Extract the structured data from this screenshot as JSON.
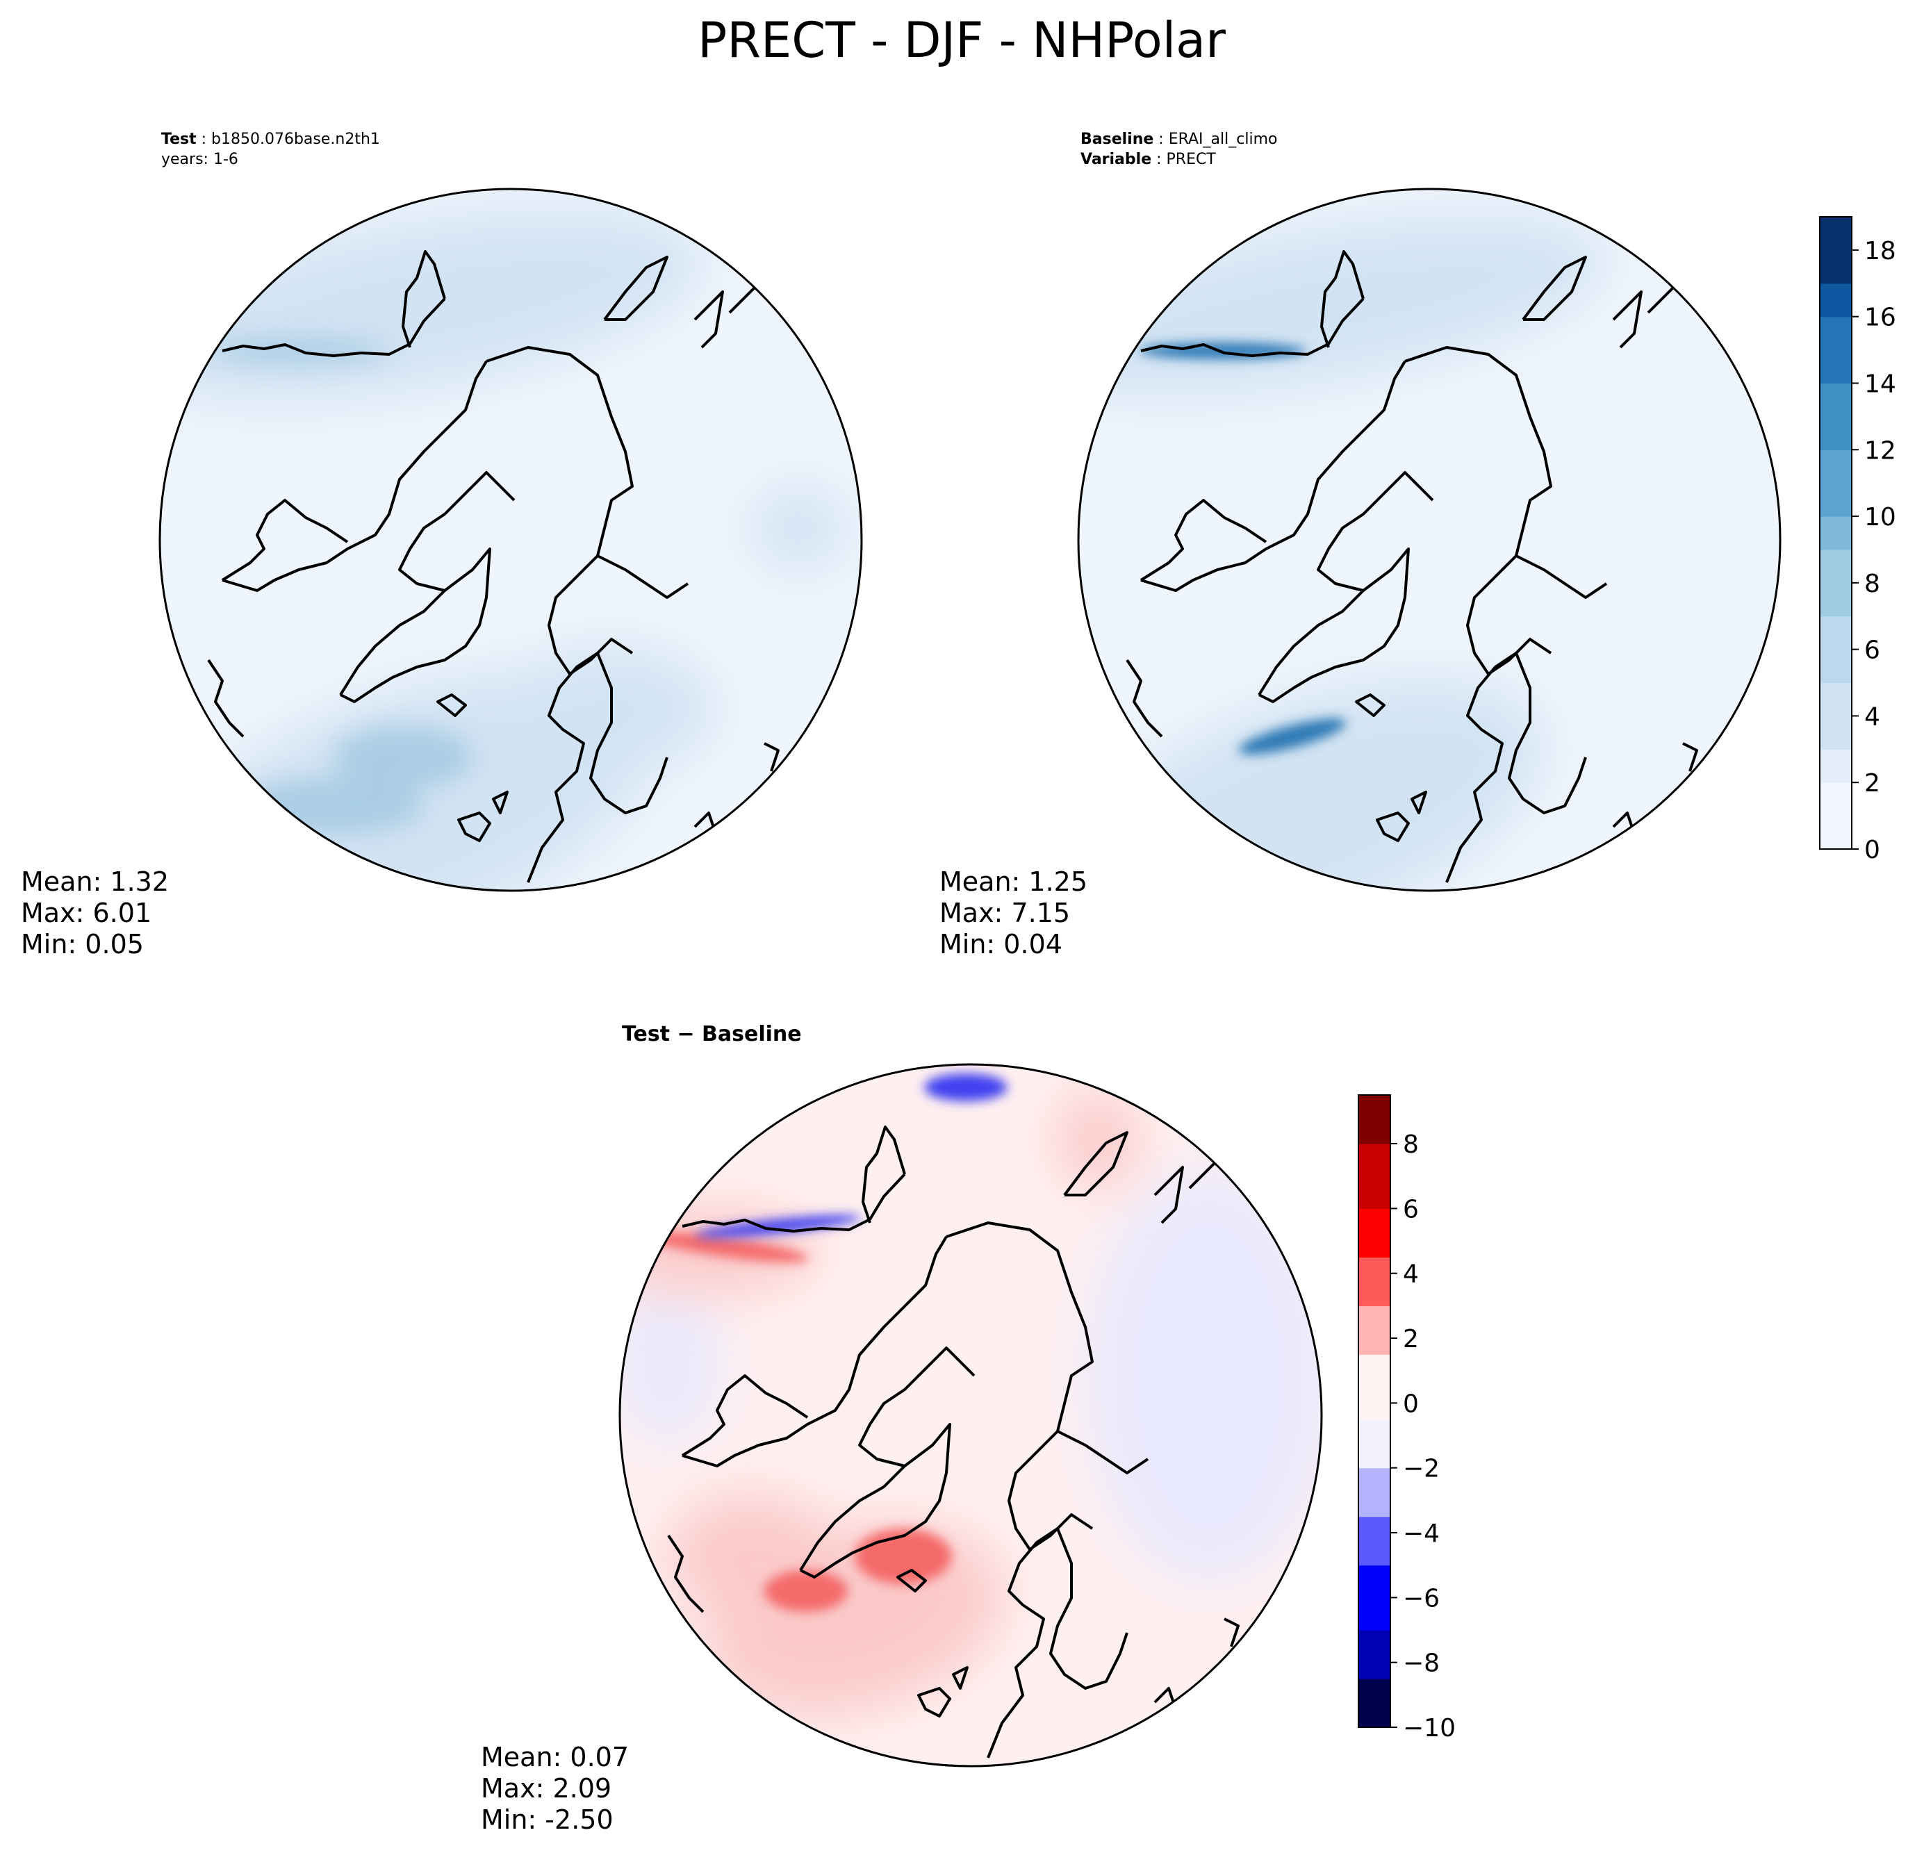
{
  "chart_data": {
    "title": "PRECT - DJF - NHPolar",
    "panels": [
      {
        "id": "test",
        "type": "heatmap",
        "projection": "north-polar-stereographic",
        "header": [
          {
            "label": "Test",
            "value": "b1850.076base.n2th1"
          },
          {
            "label": "",
            "value": "years: 1-6"
          }
        ],
        "stats": {
          "mean": "Mean:  1.32",
          "max": "Max:  6.01",
          "min": "Min:  0.05"
        },
        "colorbar": "precip"
      },
      {
        "id": "baseline",
        "type": "heatmap",
        "projection": "north-polar-stereographic",
        "header": [
          {
            "label": "Baseline",
            "value": "ERAI_all_climo"
          },
          {
            "label": "Variable",
            "value": "PRECT"
          }
        ],
        "stats": {
          "mean": "Mean:  1.25",
          "max": "Max:  7.15",
          "min": "Min:  0.04"
        },
        "colorbar": "precip"
      },
      {
        "id": "diff",
        "type": "heatmap",
        "projection": "north-polar-stereographic",
        "header_title": "Test − Baseline",
        "stats": {
          "mean": "Mean:  0.07",
          "max": "Max:  2.09",
          "min": "Min: -2.50"
        },
        "colorbar": "diff"
      }
    ],
    "colorbars": {
      "precip": {
        "range": [
          0,
          19
        ],
        "ticks": [
          0,
          2,
          4,
          6,
          8,
          10,
          12,
          14,
          16,
          18
        ],
        "tick_labels": [
          "0",
          "2",
          "4",
          "6",
          "8",
          "10",
          "12",
          "14",
          "16",
          "18"
        ],
        "colormap": "Blues",
        "colors": [
          "#f1f7fd",
          "#e3eef9",
          "#d1e3f3",
          "#bdd8ec",
          "#a0cbe3",
          "#7fb9da",
          "#5da3d1",
          "#3f8ec4",
          "#2474b7",
          "#0e58a2",
          "#08306b"
        ]
      },
      "diff": {
        "range": [
          -10,
          9.5
        ],
        "ticks": [
          -10,
          -8,
          -6,
          -4,
          -2,
          0,
          2,
          4,
          6,
          8
        ],
        "tick_labels": [
          "−10",
          "−8",
          "−6",
          "−4",
          "−2",
          "0",
          "2",
          "4",
          "6",
          "8"
        ],
        "colormap": "seismic",
        "colors": [
          "#00004c",
          "#0000b4",
          "#0000ff",
          "#5a5aff",
          "#b4b4ff",
          "#f2f2ff",
          "#fff2f2",
          "#ffb4b4",
          "#ff5a5a",
          "#ff0000",
          "#c80000",
          "#800000"
        ]
      }
    },
    "grid": false,
    "legend": "colorbar-right"
  },
  "colors": {
    "land_outline": "#000000",
    "test_base_field": "#eff5fc",
    "test_ocean_field": "#d2e3f3",
    "test_storm_track": "#a9cce4",
    "baseline_storm_track": "#2f7ab6",
    "diff_base_field": "#fff0f0",
    "diff_positive": "#f46a6a",
    "diff_negative": "#4141f0"
  }
}
